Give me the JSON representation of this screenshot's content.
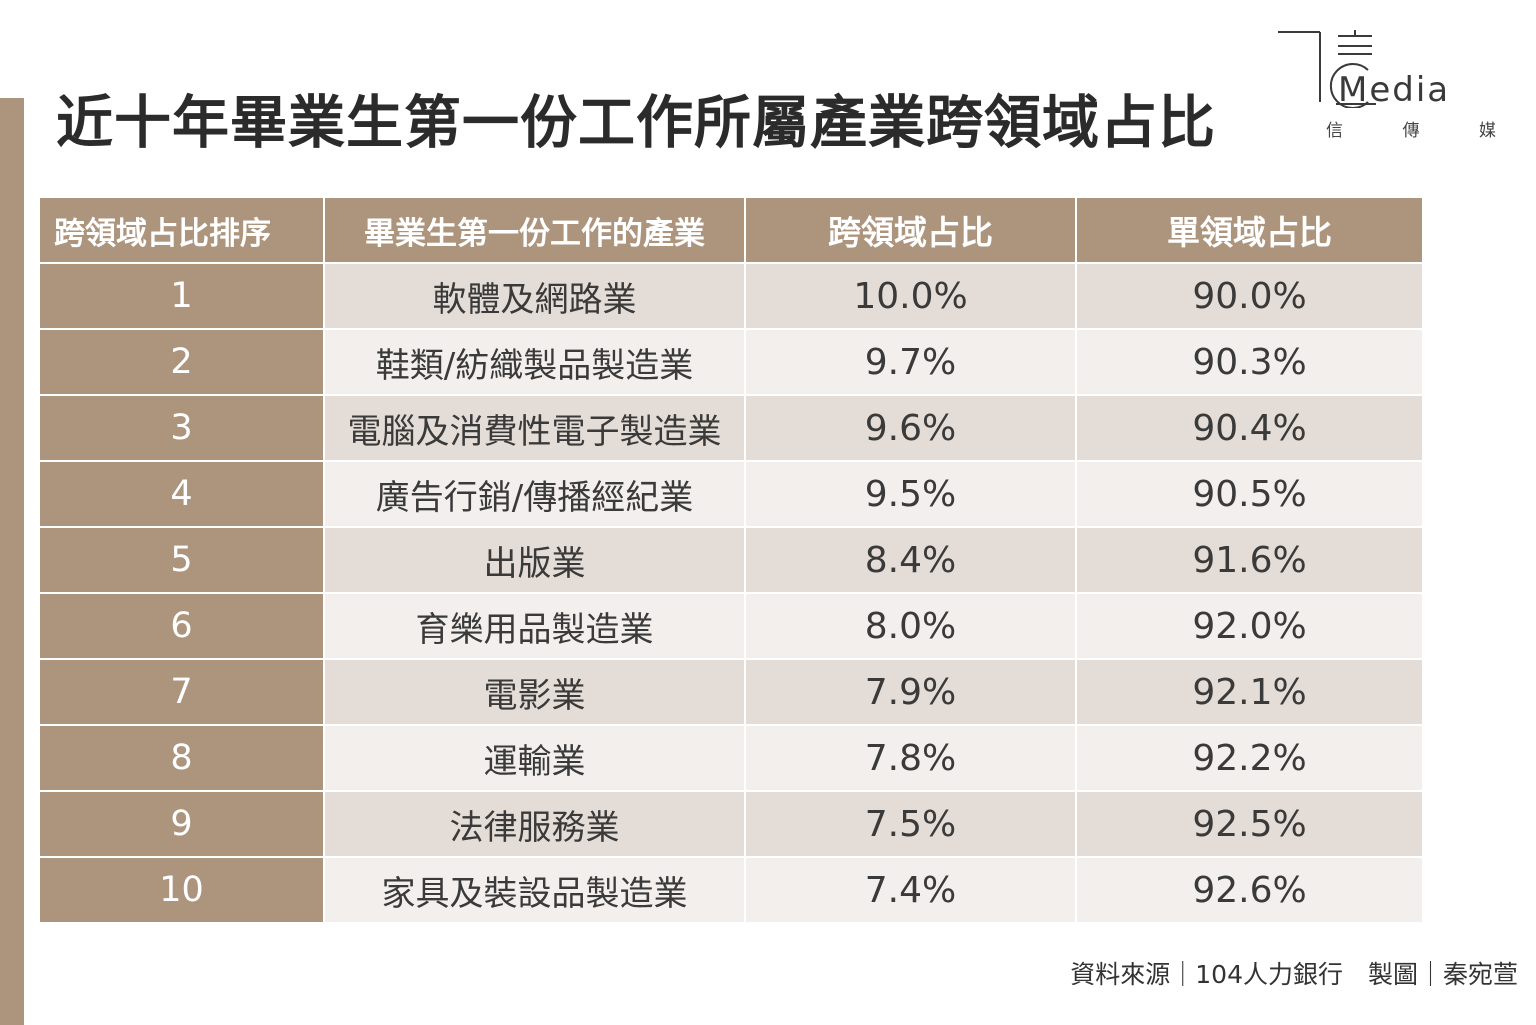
{
  "title": "近十年畢業生第一份工作所屬產業跨領域占比",
  "logo": {
    "wordmark": "Media",
    "sub": [
      "信",
      "傳",
      "媒"
    ]
  },
  "source": "資料來源｜104人力銀行　製圖｜秦宛萱",
  "colors": {
    "accent": "#ad947d",
    "row_odd": "#e4ddd7",
    "row_even": "#f2efec"
  },
  "chart_data": {
    "type": "table",
    "title": "近十年畢業生第一份工作所屬產業跨領域占比",
    "columns": [
      "跨領域占比排序",
      "畢業生第一份工作的產業",
      "跨領域占比",
      "單領域占比"
    ],
    "rows": [
      [
        "1",
        "軟體及網路業",
        "10.0%",
        "90.0%"
      ],
      [
        "2",
        "鞋類/紡織製品製造業",
        "9.7%",
        "90.3%"
      ],
      [
        "3",
        "電腦及消費性電子製造業",
        "9.6%",
        "90.4%"
      ],
      [
        "4",
        "廣告行銷/傳播經紀業",
        "9.5%",
        "90.5%"
      ],
      [
        "5",
        "出版業",
        "8.4%",
        "91.6%"
      ],
      [
        "6",
        "育樂用品製造業",
        "8.0%",
        "92.0%"
      ],
      [
        "7",
        "電影業",
        "7.9%",
        "92.1%"
      ],
      [
        "8",
        "運輸業",
        "7.8%",
        "92.2%"
      ],
      [
        "9",
        "法律服務業",
        "7.5%",
        "92.5%"
      ],
      [
        "10",
        "家具及裝設品製造業",
        "7.4%",
        "92.6%"
      ]
    ]
  }
}
